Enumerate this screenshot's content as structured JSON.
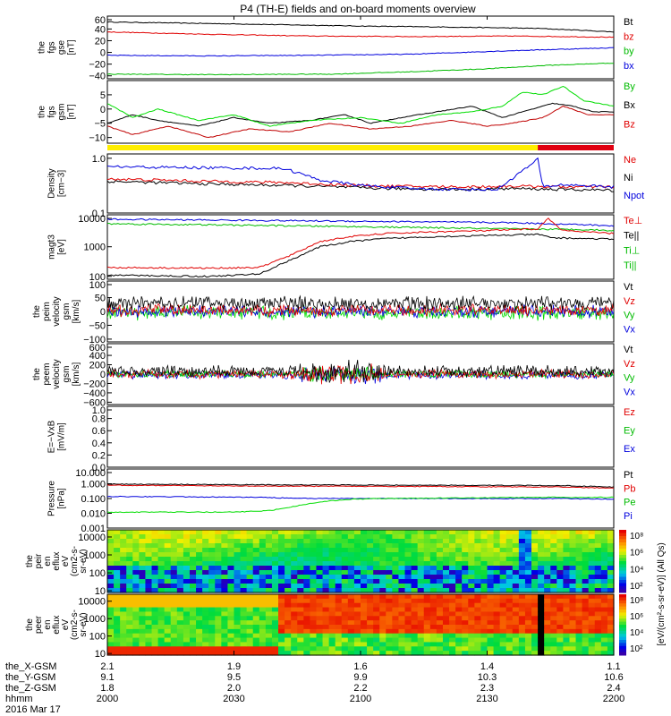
{
  "title": "P4 (TH-E) fields and on-board moments overview",
  "colors": {
    "black": "#000000",
    "red": "#e00000",
    "green": "#00dd00",
    "blue": "#0000dd",
    "yellow": "#ffee00",
    "barred": "#e00010"
  },
  "chart_data": {
    "type": "line",
    "x_ticks": [
      "2000",
      "2030",
      "2100",
      "2130",
      "2200"
    ],
    "ephemeris": {
      "labels": [
        "the_X-GSM",
        "the_Y-GSM",
        "the_Z-GSM",
        "hhmm",
        "2016 Mar 17"
      ],
      "rows": [
        [
          "2.1",
          "1.9",
          "1.6",
          "1.4",
          "1.1"
        ],
        [
          "9.1",
          "9.5",
          "9.9",
          "10.3",
          "10.6"
        ],
        [
          "1.8",
          "2.0",
          "2.2",
          "2.3",
          "2.4"
        ]
      ]
    },
    "panels": [
      {
        "id": "fgs-gse",
        "ylabel": [
          "the",
          "fgs",
          "gse",
          "[nT]"
        ],
        "yticks": [
          "60",
          "40",
          "20",
          "0",
          "−20",
          "−40"
        ],
        "ylim": [
          -45,
          62
        ],
        "legend": [
          {
            "label": "Bt",
            "color": "#000000"
          },
          {
            "label": "bz",
            "color": "#e00000"
          },
          {
            "label": "by",
            "color": "#00bb00"
          },
          {
            "label": "bx",
            "color": "#0000dd"
          }
        ],
        "series": [
          {
            "color": "#000000",
            "x": [
              0,
              0.15,
              0.3,
              0.5,
              0.7,
              0.85,
              0.93,
              1.0
            ],
            "y": [
              52,
              50,
              48,
              45,
              43,
              41,
              38,
              35
            ]
          },
          {
            "color": "#e00000",
            "x": [
              0,
              0.2,
              0.4,
              0.6,
              0.8,
              1.0
            ],
            "y": [
              35,
              31,
              28,
              27,
              28,
              26
            ]
          },
          {
            "color": "#0000dd",
            "x": [
              0,
              0.2,
              0.4,
              0.6,
              0.8,
              1.0
            ],
            "y": [
              -5,
              -6,
              -5,
              -3,
              3,
              8
            ]
          },
          {
            "color": "#00bb00",
            "x": [
              0,
              0.2,
              0.45,
              0.6,
              0.75,
              0.87,
              0.94,
              1.0
            ],
            "y": [
              -37,
              -38,
              -37,
              -33,
              -28,
              -22,
              -20,
              -18
            ]
          }
        ]
      },
      {
        "id": "fgs-gsm",
        "ylabel": [
          "the",
          "fgs",
          "gsm",
          "[nT]"
        ],
        "yticks": [
          "5",
          "0",
          "−5",
          "−10"
        ],
        "ylim": [
          -12,
          10
        ],
        "legend": [
          {
            "label": "By",
            "color": "#00bb00"
          },
          {
            "label": "Bx",
            "color": "#000000"
          },
          {
            "label": "Bz",
            "color": "#e00000"
          }
        ],
        "series": [
          {
            "color": "#000000",
            "x": [
              0,
              0.05,
              0.1,
              0.18,
              0.25,
              0.32,
              0.4,
              0.47,
              0.52,
              0.58,
              0.65,
              0.72,
              0.78,
              0.84,
              0.88,
              0.92,
              0.96,
              1.0
            ],
            "y": [
              -5,
              -2,
              -4,
              -6,
              -3,
              -5,
              -4,
              -2,
              -5,
              -3,
              -1,
              1,
              -3,
              0,
              2,
              1,
              -1,
              -1
            ]
          },
          {
            "color": "#00dd00",
            "x": [
              0,
              0.05,
              0.1,
              0.18,
              0.25,
              0.32,
              0.4,
              0.5,
              0.58,
              0.65,
              0.72,
              0.78,
              0.82,
              0.86,
              0.9,
              0.94,
              1.0
            ],
            "y": [
              2,
              -3,
              0,
              -4,
              -2,
              -6,
              -4,
              -3,
              -5,
              -2,
              -1,
              1,
              6,
              5,
              8,
              3,
              1
            ]
          },
          {
            "color": "#c00000",
            "x": [
              0,
              0.05,
              0.12,
              0.2,
              0.28,
              0.36,
              0.44,
              0.52,
              0.6,
              0.68,
              0.75,
              0.8,
              0.86,
              0.9,
              0.95,
              1.0
            ],
            "y": [
              -6,
              -9,
              -6,
              -10,
              -7,
              -8,
              -5,
              -7,
              -6,
              -4,
              -6,
              -5,
              -3,
              1,
              -2,
              -2
            ]
          }
        ]
      },
      {
        "id": "density",
        "ylabel": [
          "Density",
          "[cm−3]"
        ],
        "yticks": [
          "1.0",
          "0.1"
        ],
        "ylim": [
          0.1,
          1.2
        ],
        "log": true,
        "legend": [
          {
            "label": "Ne",
            "color": "#e00000"
          },
          {
            "label": "Ni",
            "color": "#000000"
          },
          {
            "label": "Npot",
            "color": "#0000dd"
          }
        ],
        "series": [
          {
            "color": "#000000",
            "x": [
              0,
              0.2,
              0.35,
              0.45,
              0.55,
              0.7,
              0.8,
              0.9,
              1.0
            ],
            "y": [
              0.38,
              0.34,
              0.32,
              0.3,
              0.28,
              0.27,
              0.28,
              0.27,
              0.26
            ]
          },
          {
            "color": "#e00000",
            "x": [
              0,
              0.2,
              0.35,
              0.45,
              0.55,
              0.7,
              0.8,
              0.9,
              1.0
            ],
            "y": [
              0.42,
              0.38,
              0.36,
              0.33,
              0.31,
              0.3,
              0.31,
              0.3,
              0.3
            ]
          },
          {
            "color": "#0000dd",
            "x": [
              0,
              0.35,
              0.42,
              0.5,
              0.6,
              0.7,
              0.77,
              0.85,
              0.86,
              0.9,
              1.0
            ],
            "y": [
              0.7,
              0.65,
              0.4,
              0.32,
              0.28,
              0.27,
              0.27,
              0.95,
              0.3,
              0.33,
              0.3
            ]
          }
        ]
      },
      {
        "id": "temperature",
        "ylabel": [
          "magt3",
          "[eV]"
        ],
        "yticks": [
          "10000",
          "1000",
          "100"
        ],
        "ylim": [
          80,
          12000
        ],
        "log": true,
        "legend": [
          {
            "label": "Te⊥",
            "color": "#e00000"
          },
          {
            "label": "Te||",
            "color": "#000000"
          },
          {
            "label": "Ti⊥",
            "color": "#00bb00"
          },
          {
            "label": "Ti||",
            "color": "#00bb00"
          }
        ],
        "series": [
          {
            "color": "#0000dd",
            "x": [
              0,
              0.2,
              0.4,
              0.6,
              0.8,
              0.95,
              1.0
            ],
            "y": [
              8500,
              8000,
              7500,
              7000,
              6500,
              5500,
              5000
            ]
          },
          {
            "color": "#00bb00",
            "x": [
              0,
              0.2,
              0.4,
              0.6,
              0.8,
              0.95,
              1.0
            ],
            "y": [
              6000,
              5500,
              5000,
              4500,
              4000,
              3800,
              3500
            ]
          },
          {
            "color": "#e00000",
            "x": [
              0,
              0.2,
              0.3,
              0.36,
              0.42,
              0.48,
              0.55,
              0.65,
              0.75,
              0.85,
              0.87,
              0.9,
              1.0
            ],
            "y": [
              200,
              190,
              200,
              500,
              1500,
              2200,
              2800,
              3200,
              3500,
              4000,
              9000,
              3500,
              2800
            ]
          },
          {
            "color": "#000000",
            "x": [
              0,
              0.2,
              0.3,
              0.36,
              0.42,
              0.48,
              0.55,
              0.65,
              0.75,
              0.85,
              0.88,
              1.0
            ],
            "y": [
              110,
              100,
              120,
              350,
              1000,
              1500,
              1900,
              2200,
              2400,
              2600,
              2000,
              1800
            ]
          }
        ]
      },
      {
        "id": "peim",
        "ylabel": [
          "the",
          "peim",
          "velocity",
          "gsm",
          "[km/s]"
        ],
        "yticks": [
          "100",
          "50",
          "0",
          "−50",
          "−100"
        ],
        "ylim": [
          -110,
          110
        ],
        "legend": [
          {
            "label": "Vt",
            "color": "#000000"
          },
          {
            "label": "Vz",
            "color": "#e00000"
          },
          {
            "label": "Vy",
            "color": "#00bb00"
          },
          {
            "label": "Vx",
            "color": "#0000dd"
          }
        ],
        "noise": [
          {
            "color": "#00dd00",
            "base": -5,
            "amp": 30
          },
          {
            "color": "#0000dd",
            "base": 0,
            "amp": 25
          },
          {
            "color": "#e00000",
            "base": 5,
            "amp": 25
          },
          {
            "color": "#000000",
            "base": 30,
            "amp": 30
          }
        ]
      },
      {
        "id": "peem",
        "ylabel": [
          "the",
          "peem",
          "velocity",
          "gsm",
          "[km/s]"
        ],
        "yticks": [
          "600",
          "400",
          "200",
          "0",
          "−200",
          "−400",
          "−600"
        ],
        "ylim": [
          -650,
          650
        ],
        "legend": [
          {
            "label": "Vt",
            "color": "#000000"
          },
          {
            "label": "Vz",
            "color": "#e00000"
          },
          {
            "label": "Vy",
            "color": "#00bb00"
          },
          {
            "label": "Vx",
            "color": "#0000dd"
          }
        ],
        "noise": [
          {
            "color": "#0000dd",
            "base": -20,
            "amp": 100
          },
          {
            "color": "#00dd00",
            "base": 0,
            "amp": 90
          },
          {
            "color": "#e00000",
            "base": 0,
            "amp": 110
          },
          {
            "color": "#000000",
            "base": 60,
            "amp": 140
          }
        ]
      },
      {
        "id": "efield",
        "ylabel": [
          "E=−VxB",
          "[mV/m]"
        ],
        "yticks": [
          "1.0",
          "0.8",
          "0.6",
          "0.4",
          "0.2",
          "0.0"
        ],
        "ylim": [
          0,
          1
        ],
        "legend": [
          {
            "label": "Ez",
            "color": "#e00000"
          },
          {
            "label": "Ey",
            "color": "#00bb00"
          },
          {
            "label": "Ex",
            "color": "#0000dd"
          }
        ],
        "series": []
      },
      {
        "id": "pressure",
        "ylabel": [
          "Pressure",
          "[nPa]"
        ],
        "yticks": [
          "10.000",
          "1.000",
          "0.100",
          "0.010",
          "0.001"
        ],
        "ylim": [
          0.001,
          10
        ],
        "log": true,
        "legend": [
          {
            "label": "Pt",
            "color": "#000000"
          },
          {
            "label": "Pb",
            "color": "#e00000"
          },
          {
            "label": "Pe",
            "color": "#00bb00"
          },
          {
            "label": "Pi",
            "color": "#0000dd"
          }
        ],
        "series": [
          {
            "color": "#000000",
            "x": [
              0,
              0.3,
              0.6,
              0.9,
              1.0
            ],
            "y": [
              0.95,
              0.85,
              0.8,
              0.75,
              0.6
            ]
          },
          {
            "color": "#e00000",
            "x": [
              0,
              0.3,
              0.6,
              0.9,
              1.0
            ],
            "y": [
              0.8,
              0.7,
              0.65,
              0.6,
              0.5
            ]
          },
          {
            "color": "#0000dd",
            "x": [
              0,
              0.3,
              0.4,
              0.6,
              0.9,
              1.0
            ],
            "y": [
              0.14,
              0.12,
              0.1,
              0.1,
              0.1,
              0.09
            ]
          },
          {
            "color": "#00dd00",
            "x": [
              0,
              0.25,
              0.32,
              0.37,
              0.42,
              0.48,
              0.55,
              0.7,
              0.85,
              1.0
            ],
            "y": [
              0.012,
              0.012,
              0.015,
              0.03,
              0.06,
              0.09,
              0.1,
              0.11,
              0.12,
              0.12
            ]
          }
        ]
      },
      {
        "id": "peir",
        "type": "heatmap",
        "ylabel": [
          "the",
          "peir",
          "en",
          "eflux",
          "eV",
          "(cm2-s-",
          "sr-eV)"
        ],
        "yticks": [
          "10000",
          "1000",
          "100",
          "10"
        ],
        "ylim": [
          8,
          25000
        ],
        "log": true,
        "colorbar_ticks": [
          "10⁸",
          "10⁶",
          "10⁴",
          "10²"
        ]
      },
      {
        "id": "peer",
        "type": "heatmap",
        "ylabel": [
          "the",
          "peer",
          "en",
          "eflux",
          "eV",
          "(cm2-s-",
          "sr-eV)"
        ],
        "yticks": [
          "10000",
          "1000",
          "100",
          "10"
        ],
        "ylim": [
          8,
          25000
        ],
        "log": true,
        "colorbar_ticks": [
          "10⁸",
          "10⁶",
          "10⁴",
          "10²"
        ]
      }
    ],
    "colorbar_label": "[eV/(cm²-s-sr-eV)] (All Qs)",
    "status_bar": {
      "segments": [
        {
          "x": [
            0,
            0.85
          ],
          "color": "#ffee00"
        },
        {
          "x": [
            0.85,
            1.0
          ],
          "color": "#e00010"
        }
      ]
    }
  }
}
